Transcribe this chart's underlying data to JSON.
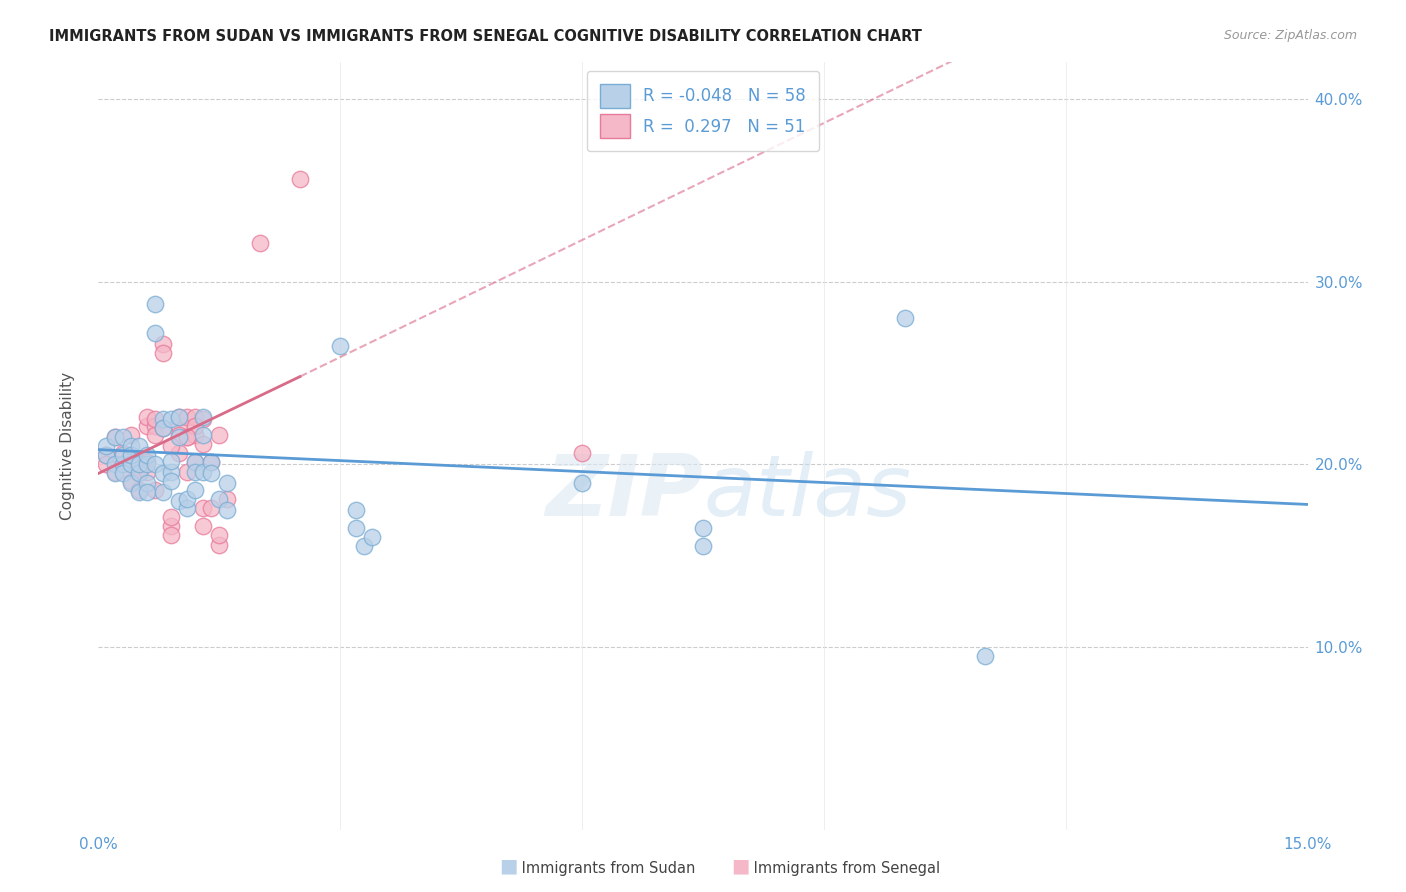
{
  "title": "IMMIGRANTS FROM SUDAN VS IMMIGRANTS FROM SENEGAL COGNITIVE DISABILITY CORRELATION CHART",
  "source": "Source: ZipAtlas.com",
  "ylabel": "Cognitive Disability",
  "xlim": [
    0.0,
    0.15
  ],
  "ylim": [
    0.0,
    0.42
  ],
  "legend_r_sudan": "-0.048",
  "legend_n_sudan": "58",
  "legend_r_senegal": "0.297",
  "legend_n_senegal": "51",
  "sudan_face_color": "#b8d0e8",
  "senegal_face_color": "#f4b8c8",
  "sudan_edge_color": "#7aadd4",
  "senegal_edge_color": "#e87a9a",
  "sudan_line_color": "#5b9bd5",
  "senegal_line_color": "#d96b8a",
  "watermark_color": "#dce8f3",
  "sudan_line": [
    [
      0.0,
      0.208
    ],
    [
      0.15,
      0.178
    ]
  ],
  "senegal_solid_line": [
    [
      0.0,
      0.195
    ],
    [
      0.025,
      0.248
    ]
  ],
  "senegal_dash_line": [
    [
      0.025,
      0.248
    ],
    [
      0.15,
      0.515
    ]
  ],
  "sudan_points": [
    [
      0.001,
      0.205
    ],
    [
      0.001,
      0.21
    ],
    [
      0.002,
      0.2
    ],
    [
      0.002,
      0.215
    ],
    [
      0.002,
      0.195
    ],
    [
      0.003,
      0.2
    ],
    [
      0.003,
      0.205
    ],
    [
      0.003,
      0.215
    ],
    [
      0.003,
      0.195
    ],
    [
      0.004,
      0.2
    ],
    [
      0.004,
      0.21
    ],
    [
      0.004,
      0.19
    ],
    [
      0.004,
      0.205
    ],
    [
      0.005,
      0.195
    ],
    [
      0.005,
      0.2
    ],
    [
      0.005,
      0.185
    ],
    [
      0.005,
      0.21
    ],
    [
      0.006,
      0.2
    ],
    [
      0.006,
      0.205
    ],
    [
      0.006,
      0.19
    ],
    [
      0.006,
      0.185
    ],
    [
      0.007,
      0.288
    ],
    [
      0.007,
      0.272
    ],
    [
      0.007,
      0.2
    ],
    [
      0.008,
      0.225
    ],
    [
      0.008,
      0.22
    ],
    [
      0.008,
      0.195
    ],
    [
      0.008,
      0.185
    ],
    [
      0.009,
      0.196
    ],
    [
      0.009,
      0.202
    ],
    [
      0.009,
      0.191
    ],
    [
      0.009,
      0.225
    ],
    [
      0.01,
      0.226
    ],
    [
      0.01,
      0.215
    ],
    [
      0.01,
      0.18
    ],
    [
      0.011,
      0.176
    ],
    [
      0.011,
      0.181
    ],
    [
      0.012,
      0.201
    ],
    [
      0.012,
      0.196
    ],
    [
      0.012,
      0.186
    ],
    [
      0.013,
      0.226
    ],
    [
      0.013,
      0.216
    ],
    [
      0.013,
      0.196
    ],
    [
      0.014,
      0.201
    ],
    [
      0.014,
      0.195
    ],
    [
      0.015,
      0.181
    ],
    [
      0.016,
      0.19
    ],
    [
      0.016,
      0.175
    ],
    [
      0.03,
      0.265
    ],
    [
      0.032,
      0.175
    ],
    [
      0.032,
      0.165
    ],
    [
      0.033,
      0.155
    ],
    [
      0.034,
      0.16
    ],
    [
      0.06,
      0.19
    ],
    [
      0.075,
      0.155
    ],
    [
      0.075,
      0.165
    ],
    [
      0.1,
      0.28
    ],
    [
      0.11,
      0.095
    ]
  ],
  "senegal_points": [
    [
      0.001,
      0.205
    ],
    [
      0.001,
      0.2
    ],
    [
      0.002,
      0.215
    ],
    [
      0.002,
      0.196
    ],
    [
      0.003,
      0.206
    ],
    [
      0.003,
      0.2
    ],
    [
      0.004,
      0.191
    ],
    [
      0.004,
      0.216
    ],
    [
      0.005,
      0.201
    ],
    [
      0.005,
      0.196
    ],
    [
      0.005,
      0.186
    ],
    [
      0.006,
      0.221
    ],
    [
      0.006,
      0.226
    ],
    [
      0.006,
      0.201
    ],
    [
      0.006,
      0.196
    ],
    [
      0.007,
      0.221
    ],
    [
      0.007,
      0.216
    ],
    [
      0.007,
      0.225
    ],
    [
      0.007,
      0.186
    ],
    [
      0.008,
      0.266
    ],
    [
      0.008,
      0.261
    ],
    [
      0.009,
      0.166
    ],
    [
      0.009,
      0.171
    ],
    [
      0.009,
      0.161
    ],
    [
      0.01,
      0.221
    ],
    [
      0.01,
      0.216
    ],
    [
      0.01,
      0.226
    ],
    [
      0.011,
      0.226
    ],
    [
      0.011,
      0.215
    ],
    [
      0.011,
      0.196
    ],
    [
      0.012,
      0.226
    ],
    [
      0.012,
      0.216
    ],
    [
      0.012,
      0.201
    ],
    [
      0.013,
      0.225
    ],
    [
      0.013,
      0.176
    ],
    [
      0.013,
      0.166
    ],
    [
      0.014,
      0.176
    ],
    [
      0.015,
      0.156
    ],
    [
      0.015,
      0.161
    ],
    [
      0.016,
      0.181
    ],
    [
      0.02,
      0.321
    ],
    [
      0.025,
      0.356
    ],
    [
      0.06,
      0.206
    ],
    [
      0.014,
      0.201
    ],
    [
      0.015,
      0.216
    ],
    [
      0.013,
      0.211
    ],
    [
      0.012,
      0.221
    ],
    [
      0.011,
      0.215
    ],
    [
      0.01,
      0.206
    ],
    [
      0.008,
      0.22
    ],
    [
      0.009,
      0.21
    ]
  ]
}
